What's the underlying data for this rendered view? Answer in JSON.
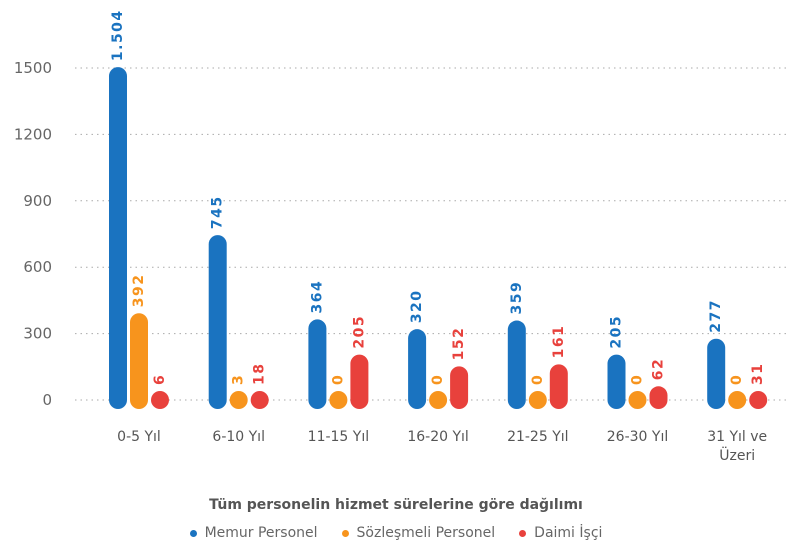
{
  "chart_data": {
    "type": "bar",
    "title": "Tüm personelin hizmet sürelerine göre dağılımı",
    "categories": [
      "0-5 Yıl",
      "6-10 Yıl",
      "11-15 Yıl",
      "16-20 Yıl",
      "21-25 Yıl",
      "26-30 Yıl",
      "31 Yıl ve Üzeri"
    ],
    "series": [
      {
        "name": "Memur Personel",
        "color": "#1a73c0",
        "values": [
          1504,
          745,
          364,
          320,
          359,
          205,
          277
        ],
        "value_labels": [
          "1.504",
          "745",
          "364",
          "320",
          "359",
          "205",
          "277"
        ]
      },
      {
        "name": "Sözleşmeli Personel",
        "color": "#f7941d",
        "values": [
          392,
          3,
          0,
          0,
          0,
          0,
          0
        ]
      },
      {
        "name": "Daimi İşçi",
        "color": "#e8413c",
        "values": [
          6,
          18,
          205,
          152,
          161,
          62,
          31
        ]
      }
    ],
    "ylim": [
      0,
      1500
    ],
    "yticks": [
      0,
      300,
      600,
      900,
      1200,
      1500
    ],
    "grid": true,
    "legend": "bottom"
  }
}
